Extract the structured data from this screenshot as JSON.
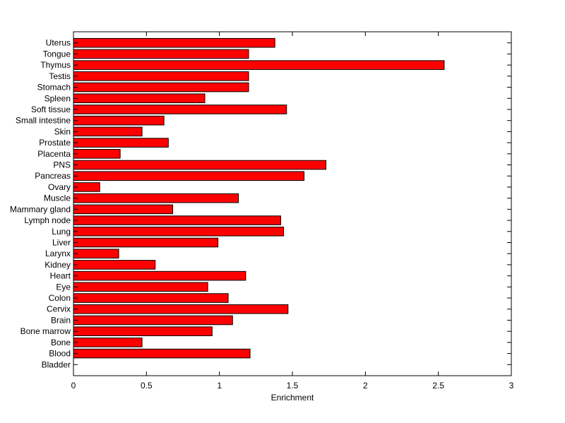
{
  "chart_data": {
    "type": "bar",
    "orientation": "horizontal",
    "title": "",
    "xlabel": "Enrichment",
    "ylabel": "",
    "xlim": [
      0,
      3
    ],
    "xticks": [
      0,
      0.5,
      1,
      1.5,
      2,
      2.5,
      3
    ],
    "xtick_labels": [
      "0",
      "0.5",
      "1",
      "1.5",
      "2",
      "2.5",
      "3"
    ],
    "grid": false,
    "legend": "none",
    "bar_color": "#ff0000",
    "bar_edge_color": "#000000",
    "categories": [
      "Bladder",
      "Blood",
      "Bone",
      "Bone marrow",
      "Brain",
      "Cervix",
      "Colon",
      "Eye",
      "Heart",
      "Kidney",
      "Larynx",
      "Liver",
      "Lung",
      "Lymph node",
      "Mammary gland",
      "Muscle",
      "Ovary",
      "Pancreas",
      "PNS",
      "Placenta",
      "Prostate",
      "Skin",
      "Small intestine",
      "Soft tissue",
      "Spleen",
      "Stomach",
      "Testis",
      "Thymus",
      "Tongue",
      "Uterus"
    ],
    "values": [
      0,
      1.21,
      0.47,
      0.95,
      1.09,
      1.47,
      1.06,
      0.92,
      1.18,
      0.56,
      0.31,
      0.99,
      1.44,
      1.42,
      0.68,
      1.13,
      0.18,
      1.58,
      1.73,
      0.32,
      0.65,
      0.47,
      0.62,
      1.46,
      0.9,
      1.2,
      1.2,
      2.54,
      1.2,
      1.38
    ]
  }
}
